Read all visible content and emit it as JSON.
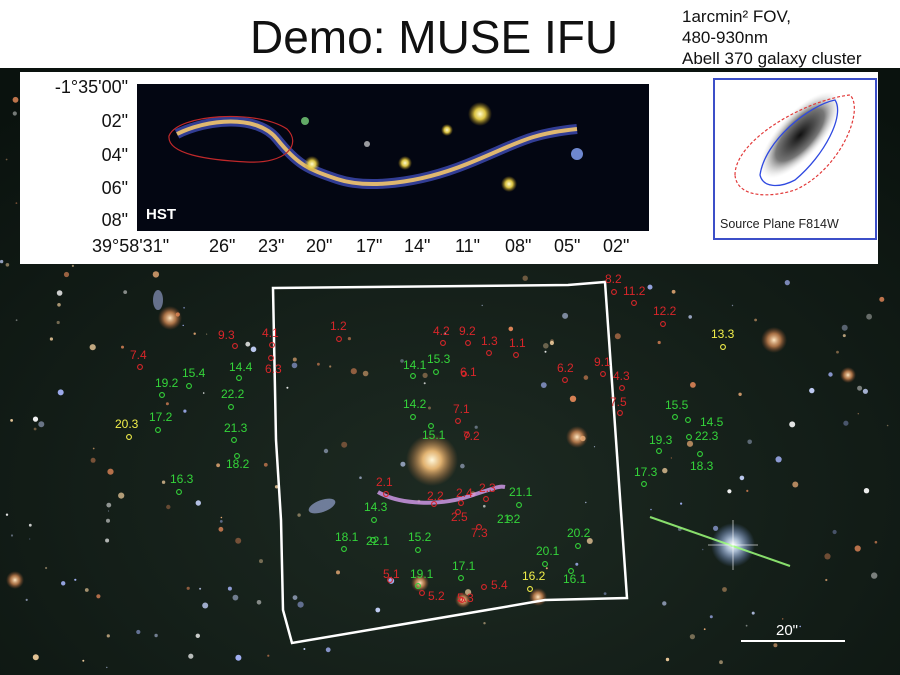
{
  "title": "Demo: MUSE IFU",
  "fov_note": [
    "1arcmin² FOV,",
    "480-930nm",
    "Abell 370 galaxy cluster"
  ],
  "inset": {
    "dec_ticks": [
      "-1°35'00\"",
      "02\"",
      "04\"",
      "06\"",
      "08\""
    ],
    "ra_ticks": [
      "39°58'31\"",
      "26\"",
      "23\"",
      "20\"",
      "17\"",
      "14\"",
      "11\"",
      "08\"",
      "05\"",
      "02\""
    ],
    "hst_label": "HST",
    "source_plane_label": "Source Plane F814W"
  },
  "scale_bar_label": "20\"",
  "labels": {
    "red": [
      "8.2",
      "11.2",
      "12.2",
      "9.3",
      "4.1",
      "1.2",
      "4.2",
      "9.2",
      "1.3",
      "1.1",
      "7.4",
      "6.3",
      "6.1",
      "6.2",
      "9.1",
      "4.3",
      "7.5",
      "7.1",
      "7.2",
      "2.1",
      "2.2",
      "2.4",
      "2.3",
      "2.5",
      "7.3",
      "5.1",
      "5.2",
      "5.3",
      "5.4"
    ],
    "green": [
      "15.4",
      "19.2",
      "17.2",
      "14.4",
      "22.2",
      "21.3",
      "18.2",
      "16.3",
      "14.1",
      "15.3",
      "14.2",
      "15.1",
      "15.5",
      "14.5",
      "19.3",
      "22.3",
      "18.3",
      "17.3",
      "21.1",
      "21.2",
      "14.3",
      "18.1",
      "22.1",
      "15.2",
      "20.2",
      "20.1",
      "19.1",
      "17.1",
      "16.1"
    ],
    "yellow": [
      "13.3",
      "20.3",
      "16.2"
    ]
  },
  "colors": {
    "red": "#d8262a",
    "green": "#34d43a",
    "yellow": "#f2ef4a",
    "muse_outline": "#ffffff",
    "source_plane_frame": "#3c4fc8"
  }
}
